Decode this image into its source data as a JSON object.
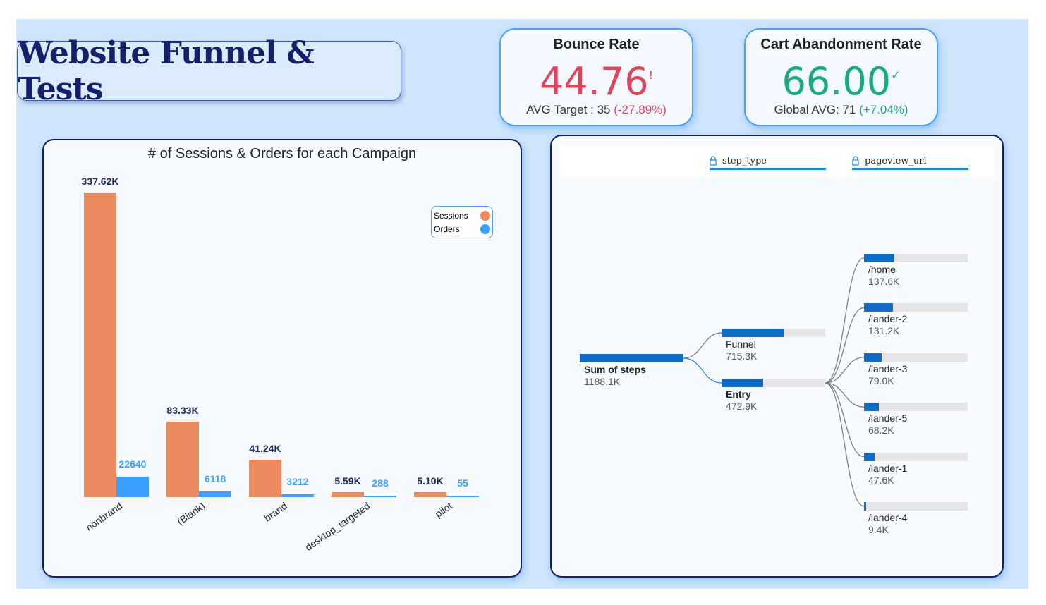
{
  "title": "Website Funnel & Tests",
  "kpis": {
    "bounce": {
      "title": "Bounce Rate",
      "value": "44.76",
      "flag": "!",
      "sub": "AVG Target : 35",
      "delta": "(-27.89%)",
      "color": "#d9475a"
    },
    "cart": {
      "title": "Cart Abandonment Rate",
      "value": "66.00",
      "flag": "✓",
      "sub": "Global AVG: 71",
      "delta": "(+7.04%)",
      "color": "#1aa886"
    }
  },
  "chart_data": {
    "type": "bar",
    "title": "# of Sessions & Orders for each Campaign",
    "categories": [
      "nonbrand",
      "(Blank)",
      "brand",
      "desktop_targeted",
      "pilot"
    ],
    "series": [
      {
        "name": "Sessions",
        "color": "#ea8a5e",
        "values": [
          337620,
          83330,
          41240,
          5590,
          5100
        ],
        "labels": [
          "337.62K",
          "83.33K",
          "41.24K",
          "5.59K",
          "5.10K"
        ]
      },
      {
        "name": "Orders",
        "color": "#3aa0ff",
        "values": [
          22640,
          6118,
          3212,
          288,
          55
        ],
        "labels": [
          "22640",
          "6118",
          "3212",
          "288",
          "55"
        ]
      }
    ],
    "legend": "top-right"
  },
  "tree": {
    "levels": [
      "step_type",
      "pageview_url"
    ],
    "root": {
      "label": "Sum of steps",
      "value": "1188.1K",
      "num": 1188.1
    },
    "steps": [
      {
        "label": "Funnel",
        "value": "715.3K",
        "num": 715.3
      },
      {
        "label": "Entry",
        "value": "472.9K",
        "num": 472.9
      }
    ],
    "pages": [
      {
        "label": "/home",
        "value": "137.6K",
        "num": 137.6
      },
      {
        "label": "/lander-2",
        "value": "131.2K",
        "num": 131.2
      },
      {
        "label": "/lander-3",
        "value": "79.0K",
        "num": 79.0
      },
      {
        "label": "/lander-5",
        "value": "68.2K",
        "num": 68.2
      },
      {
        "label": "/lander-1",
        "value": "47.6K",
        "num": 47.6
      },
      {
        "label": "/lander-4",
        "value": "9.4K",
        "num": 9.4
      }
    ]
  }
}
